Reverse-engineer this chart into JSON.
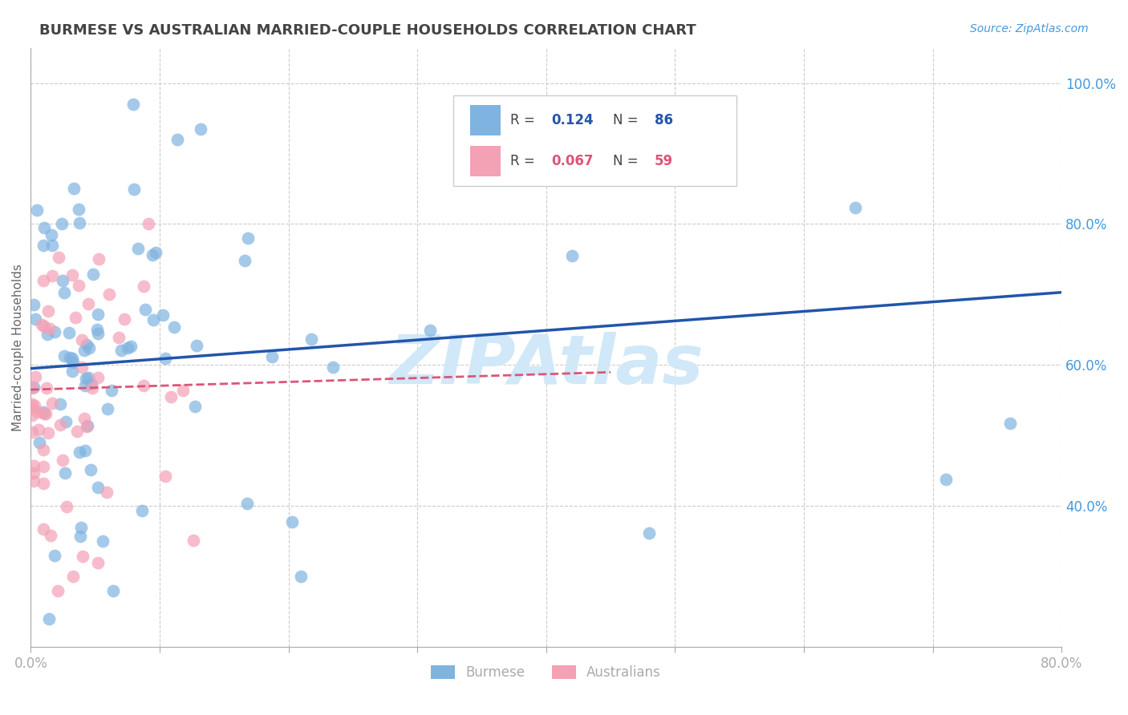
{
  "title": "BURMESE VS AUSTRALIAN MARRIED-COUPLE HOUSEHOLDS CORRELATION CHART",
  "source": "Source: ZipAtlas.com",
  "ylabel": "Married-couple Households",
  "watermark": "ZIPAtlas",
  "xlim": [
    0.0,
    0.8
  ],
  "ylim": [
    0.2,
    1.05
  ],
  "xticks": [
    0.0,
    0.1,
    0.2,
    0.3,
    0.4,
    0.5,
    0.6,
    0.7,
    0.8
  ],
  "xticklabels": [
    "0.0%",
    "",
    "",
    "",
    "",
    "",
    "",
    "",
    "80.0%"
  ],
  "yticks_right": [
    0.4,
    0.6,
    0.8,
    1.0
  ],
  "yticklabels_right": [
    "40.0%",
    "60.0%",
    "80.0%",
    "100.0%"
  ],
  "blue_color": "#7fb3e0",
  "pink_color": "#f4a0b5",
  "blue_line_color": "#2255aa",
  "pink_line_color": "#dd5577",
  "blue_R": 0.124,
  "blue_N": 86,
  "pink_R": 0.067,
  "pink_N": 59,
  "blue_intercept": 0.595,
  "blue_slope": 0.135,
  "pink_intercept": 0.565,
  "pink_slope": 0.055,
  "bg_color": "#ffffff",
  "grid_color": "#cccccc",
  "axis_color": "#aaaaaa",
  "right_axis_color": "#4499dd",
  "title_color": "#444444",
  "ylabel_color": "#666666",
  "watermark_color": "#d0e8f8",
  "legend_box_color": "#eeeeee",
  "legend_border_color": "#cccccc"
}
